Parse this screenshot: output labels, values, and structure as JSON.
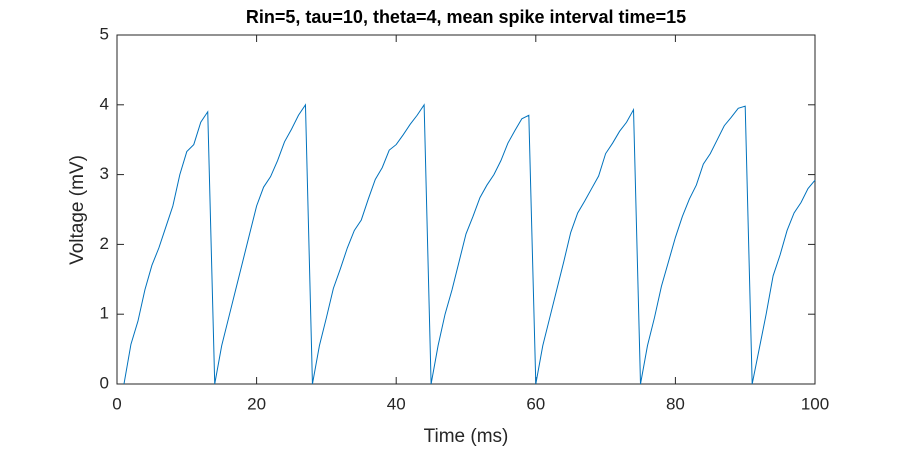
{
  "chart_data": {
    "type": "line",
    "title": "Rin=5, tau=10, theta=4, mean spike interval time=15",
    "x_label": "Time (ms)",
    "y_label": "Voltage (mV)",
    "x": [
      1,
      2,
      3,
      4,
      5,
      6,
      7,
      8,
      9,
      10,
      11,
      12,
      13,
      14,
      15,
      16,
      17,
      18,
      19,
      20,
      21,
      22,
      23,
      24,
      25,
      26,
      27,
      28,
      29,
      30,
      31,
      32,
      33,
      34,
      35,
      36,
      37,
      38,
      39,
      40,
      41,
      42,
      43,
      44,
      45,
      46,
      47,
      48,
      49,
      50,
      51,
      52,
      53,
      54,
      55,
      56,
      57,
      58,
      59,
      60,
      61,
      62,
      63,
      64,
      65,
      66,
      67,
      68,
      69,
      70,
      71,
      72,
      73,
      74,
      75,
      76,
      77,
      78,
      79,
      80,
      81,
      82,
      83,
      84,
      85,
      86,
      87,
      88,
      89,
      90,
      91,
      92,
      93,
      94,
      95,
      96,
      97,
      98,
      99,
      100
    ],
    "series": [
      {
        "color": "#0072bd",
        "values": [
          0,
          0.57,
          0.9,
          1.35,
          1.7,
          1.95,
          2.25,
          2.55,
          3.0,
          3.33,
          3.43,
          3.75,
          3.9,
          0,
          0.55,
          0.95,
          1.35,
          1.75,
          2.15,
          2.55,
          2.82,
          2.97,
          3.2,
          3.47,
          3.65,
          3.85,
          4.0,
          0,
          0.55,
          0.95,
          1.37,
          1.65,
          1.95,
          2.2,
          2.35,
          2.65,
          2.93,
          3.1,
          3.35,
          3.43,
          3.57,
          3.72,
          3.85,
          4.0,
          0,
          0.55,
          1.0,
          1.35,
          1.75,
          2.15,
          2.4,
          2.67,
          2.85,
          3.0,
          3.2,
          3.45,
          3.63,
          3.8,
          3.85,
          0,
          0.55,
          0.95,
          1.35,
          1.75,
          2.17,
          2.45,
          2.62,
          2.8,
          2.98,
          3.3,
          3.45,
          3.62,
          3.75,
          3.93,
          0,
          0.55,
          0.95,
          1.4,
          1.75,
          2.1,
          2.4,
          2.65,
          2.85,
          3.15,
          3.3,
          3.5,
          3.7,
          3.82,
          3.95,
          3.98,
          0,
          0.5,
          1.0,
          1.55,
          1.85,
          2.2,
          2.45,
          2.6,
          2.8,
          2.92
        ]
      }
    ],
    "xlim": [
      0,
      100
    ],
    "xticks": [
      0,
      20,
      40,
      60,
      80,
      100
    ],
    "ylim": [
      0,
      5
    ],
    "yticks": [
      0,
      1,
      2,
      3,
      4,
      5
    ]
  }
}
